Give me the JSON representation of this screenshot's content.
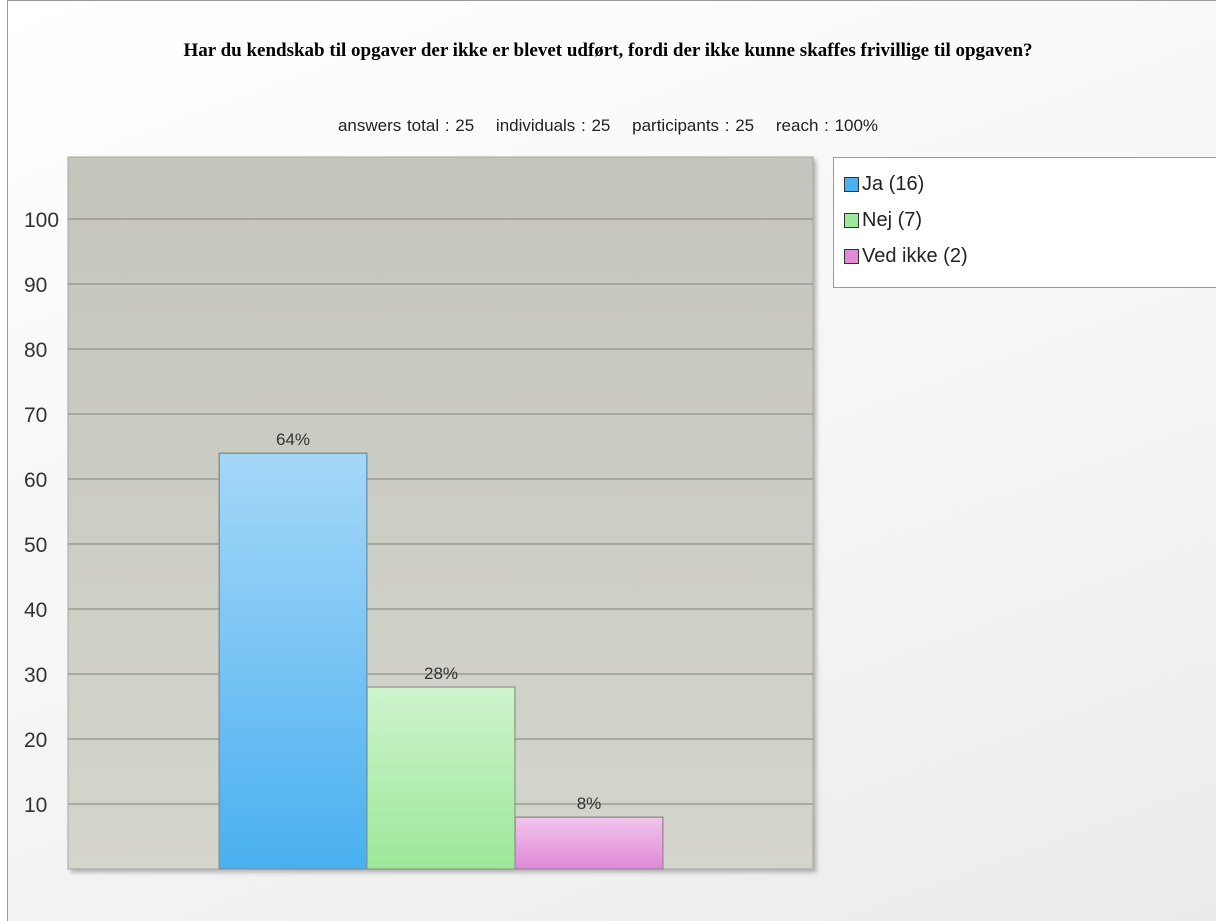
{
  "chart_data": {
    "type": "bar",
    "title": "Har du kendskab til opgaver der ikke er blevet udført, fordi der ikke kunne skaffes frivillige til opgaven?",
    "stats": [
      "answers total : 25",
      "individuals : 25",
      "participants : 25",
      "reach : 100%"
    ],
    "categories": [
      "Ja (16)",
      "Nej (7)",
      "Ved ikke (2)"
    ],
    "values": [
      64,
      28,
      8
    ],
    "value_labels": [
      "64%",
      "28%",
      "8%"
    ],
    "colors": [
      "#4ab0f0",
      "#9de89a",
      "#e08ad8"
    ],
    "yticks": [
      10,
      20,
      30,
      40,
      50,
      60,
      70,
      80,
      90,
      100
    ],
    "ylim": [
      0,
      110
    ],
    "grid": true,
    "legend_position": "top-right"
  }
}
